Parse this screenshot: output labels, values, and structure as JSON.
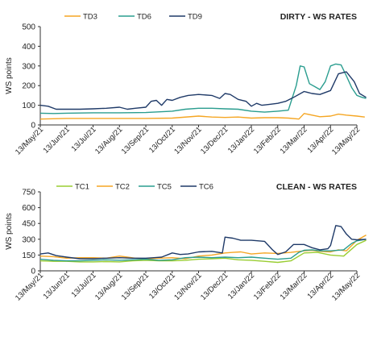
{
  "chart_data": [
    {
      "type": "line",
      "title": "DIRTY - WS RATES",
      "ylabel": "WS points",
      "ylim": [
        0,
        500
      ],
      "yticks": [
        0,
        100,
        200,
        300,
        400,
        500
      ],
      "legend_position": "top-left",
      "grid": false,
      "categories": [
        "13/May/21",
        "13/Jun/21",
        "13/Jul/21",
        "13/Aug/21",
        "13/Sep/21",
        "13/Oct/21",
        "13/Nov/21",
        "13/Dec/21",
        "13/Jan/22",
        "13/Feb/22",
        "13/Mar/22",
        "13/Apr/22",
        "13/May/22"
      ],
      "series": [
        {
          "name": "TD3",
          "color": "#f5a623",
          "x": [
            0,
            1,
            2,
            3,
            4,
            5,
            6,
            6.5,
            7,
            7.5,
            8,
            8.5,
            9,
            9.4,
            9.8,
            10,
            10.3,
            10.6,
            11,
            11.3,
            11.6,
            12,
            12.3
          ],
          "y": [
            30,
            33,
            33,
            33,
            33,
            35,
            45,
            40,
            38,
            40,
            35,
            37,
            37,
            35,
            30,
            58,
            50,
            42,
            45,
            55,
            50,
            45,
            40
          ]
        },
        {
          "name": "TD6",
          "color": "#2a9d8f",
          "x": [
            0,
            0.5,
            1,
            2,
            3,
            4,
            5,
            5.5,
            6,
            6.5,
            7,
            7.5,
            8,
            8.5,
            9,
            9.4,
            9.7,
            9.85,
            10,
            10.2,
            10.4,
            10.6,
            10.8,
            11,
            11.2,
            11.4,
            11.6,
            11.8,
            12,
            12.2,
            12.35
          ],
          "y": [
            60,
            58,
            60,
            62,
            62,
            63,
            70,
            80,
            85,
            85,
            82,
            80,
            70,
            65,
            70,
            75,
            200,
            300,
            295,
            210,
            195,
            180,
            220,
            300,
            310,
            305,
            250,
            190,
            150,
            140,
            135
          ]
        },
        {
          "name": "TD9",
          "color": "#1f3a68",
          "x": [
            0,
            0.3,
            0.6,
            1,
            1.5,
            2,
            2.5,
            3,
            3.3,
            3.6,
            4,
            4.2,
            4.4,
            4.6,
            4.8,
            5,
            5.3,
            5.6,
            6,
            6.5,
            6.8,
            7,
            7.2,
            7.5,
            7.8,
            8,
            8.2,
            8.4,
            8.7,
            9,
            9.3,
            9.6,
            10,
            10.3,
            10.6,
            11,
            11.3,
            11.6,
            11.9,
            12.1,
            12.35
          ],
          "y": [
            100,
            95,
            80,
            80,
            80,
            82,
            85,
            90,
            80,
            85,
            90,
            120,
            125,
            100,
            130,
            125,
            140,
            150,
            155,
            150,
            135,
            160,
            155,
            130,
            120,
            95,
            110,
            100,
            105,
            110,
            120,
            140,
            170,
            160,
            155,
            175,
            260,
            270,
            220,
            160,
            140
          ]
        }
      ]
    },
    {
      "type": "line",
      "title": "CLEAN - WS RATES",
      "ylabel": "WS points",
      "ylim": [
        0,
        750
      ],
      "yticks": [
        0,
        150,
        300,
        450,
        600,
        750
      ],
      "legend_position": "top-left",
      "grid": false,
      "categories": [
        "13/May/21",
        "13/Jun/21",
        "13/Jul/21",
        "13/Aug/21",
        "13/Sep/21",
        "13/Oct/21",
        "13/Nov/21",
        "13/Dec/21",
        "13/Jan/22",
        "13/Feb/22",
        "13/Mar/22",
        "13/Apr/22",
        "13/May/22"
      ],
      "series": [
        {
          "name": "TC1",
          "color": "#9acd32",
          "x": [
            0,
            0.5,
            1,
            1.5,
            2,
            2.5,
            3,
            3.5,
            4,
            4.5,
            5,
            5.5,
            6,
            6.5,
            7,
            7.5,
            8,
            8.5,
            9,
            9.5,
            10,
            10.5,
            11,
            11.5,
            12,
            12.35
          ],
          "y": [
            95,
            90,
            90,
            85,
            85,
            88,
            85,
            95,
            100,
            95,
            95,
            100,
            110,
            115,
            120,
            105,
            100,
            90,
            80,
            95,
            170,
            175,
            150,
            140,
            250,
            290
          ]
        },
        {
          "name": "TC2",
          "color": "#f5a623",
          "x": [
            0,
            0.5,
            1,
            1.5,
            2,
            2.5,
            3,
            3.3,
            3.6,
            4,
            4.5,
            5,
            5.5,
            6,
            6.5,
            7,
            7.3,
            7.6,
            8,
            8.5,
            9,
            9.5,
            10,
            10.3,
            10.6,
            11,
            11.3,
            11.6,
            12,
            12.35
          ],
          "y": [
            140,
            135,
            120,
            125,
            125,
            120,
            140,
            130,
            120,
            115,
            120,
            125,
            115,
            140,
            150,
            170,
            175,
            180,
            160,
            170,
            165,
            175,
            190,
            195,
            185,
            180,
            200,
            190,
            290,
            340
          ]
        },
        {
          "name": "TC5",
          "color": "#2a9d8f",
          "x": [
            0,
            0.5,
            1,
            1.5,
            2,
            2.5,
            3,
            3.5,
            4,
            4.5,
            5,
            5.5,
            6,
            6.5,
            7,
            7.5,
            8,
            8.5,
            9,
            9.5,
            9.8,
            10,
            10.3,
            10.6,
            11,
            11.5,
            11.8,
            12,
            12.35
          ],
          "y": [
            110,
            100,
            95,
            95,
            100,
            105,
            100,
            105,
            110,
            100,
            105,
            125,
            130,
            125,
            130,
            125,
            130,
            120,
            110,
            120,
            175,
            195,
            200,
            190,
            190,
            200,
            260,
            285,
            300
          ]
        },
        {
          "name": "TC6",
          "color": "#1f3a68",
          "x": [
            0,
            0.3,
            0.6,
            1,
            1.5,
            2,
            2.5,
            3,
            3.5,
            4,
            4.3,
            4.6,
            5,
            5.3,
            5.6,
            6,
            6.5,
            6.9,
            7,
            7.3,
            7.6,
            8,
            8.5,
            8.8,
            9,
            9.3,
            9.6,
            10,
            10.3,
            10.6,
            10.9,
            11,
            11.2,
            11.4,
            11.6,
            11.8,
            12,
            12.35
          ],
          "y": [
            160,
            170,
            145,
            130,
            115,
            115,
            120,
            125,
            120,
            120,
            125,
            130,
            170,
            155,
            160,
            180,
            185,
            170,
            320,
            310,
            290,
            290,
            280,
            200,
            155,
            180,
            250,
            250,
            220,
            200,
            210,
            240,
            430,
            420,
            350,
            300,
            295,
            300
          ]
        }
      ]
    }
  ]
}
